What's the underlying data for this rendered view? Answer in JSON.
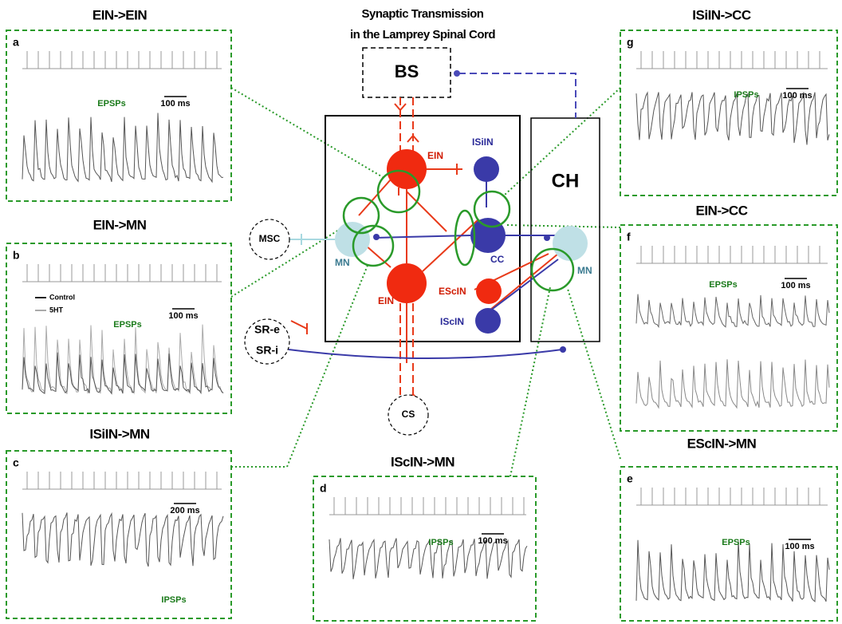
{
  "title": [
    "Synaptic Transmission",
    "in the Lamprey Spinal Cord"
  ],
  "panels": [
    {
      "letter": "a",
      "heading": "EIN->EIN",
      "psp_label": "EPSPs",
      "scale_label": "100 ms"
    },
    {
      "letter": "b",
      "heading": "EIN->MN",
      "psp_label": "EPSPs",
      "scale_label": "100 ms",
      "legend": [
        "Control",
        "5HT"
      ]
    },
    {
      "letter": "c",
      "heading": "ISiIN->MN",
      "psp_label": "IPSPs",
      "scale_label": "200 ms"
    },
    {
      "letter": "d",
      "heading": "IScIN->MN",
      "psp_label": "IPSPs",
      "scale_label": "100 ms"
    },
    {
      "letter": "e",
      "heading": "EScIN->MN",
      "psp_label": "EPSPs",
      "scale_label": "100 ms"
    },
    {
      "letter": "f",
      "heading": "EIN->CC",
      "psp_label": "EPSPs",
      "scale_label": "100 ms"
    },
    {
      "letter": "g",
      "heading": "ISiIN->CC",
      "psp_label": "IPSPs",
      "scale_label": "100 ms"
    }
  ],
  "nodes": [
    {
      "label": "BS"
    },
    {
      "label": "CH"
    },
    {
      "label": "MSC"
    },
    {
      "label": "SR-e"
    },
    {
      "label": "SR-i"
    },
    {
      "label": "CS"
    },
    {
      "label": "EIN"
    },
    {
      "label": "EIN"
    },
    {
      "label": "ISiIN"
    },
    {
      "label": "CC"
    },
    {
      "label": "EScIN"
    },
    {
      "label": "IScIN"
    },
    {
      "label": "MN"
    },
    {
      "label": "MN"
    }
  ]
}
